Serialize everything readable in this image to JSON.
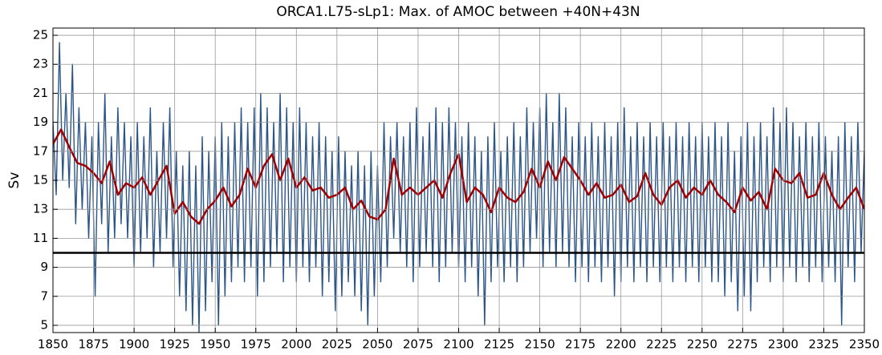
{
  "chart_data": {
    "type": "line",
    "title": "ORCA1.L75-sLp1: Max. of AMOC between +40N+43N",
    "ylabel": "Sv",
    "xlim": [
      1850,
      2350
    ],
    "ylim": [
      4.5,
      25.5
    ],
    "xticks": [
      1850,
      1875,
      1900,
      1925,
      1950,
      1975,
      2000,
      2025,
      2050,
      2075,
      2100,
      2125,
      2150,
      2175,
      2200,
      2225,
      2250,
      2275,
      2300,
      2325,
      2350
    ],
    "yticks": [
      5,
      7,
      9,
      11,
      13,
      15,
      17,
      19,
      21,
      23,
      25
    ],
    "grid": true,
    "hline": {
      "value": 10,
      "color": "#000000"
    },
    "series": [
      {
        "color": "#2b5487",
        "x": [
          1850,
          1852,
          1854,
          1856,
          1858,
          1860,
          1862,
          1864,
          1866,
          1868,
          1870,
          1872,
          1874,
          1876,
          1878,
          1880,
          1882,
          1884,
          1886,
          1888,
          1890,
          1892,
          1894,
          1896,
          1898,
          1900,
          1902,
          1904,
          1906,
          1908,
          1910,
          1912,
          1914,
          1916,
          1918,
          1920,
          1922,
          1924,
          1926,
          1928,
          1930,
          1932,
          1934,
          1936,
          1938,
          1940,
          1942,
          1944,
          1946,
          1948,
          1950,
          1952,
          1954,
          1956,
          1958,
          1960,
          1962,
          1964,
          1966,
          1968,
          1970,
          1972,
          1974,
          1976,
          1978,
          1980,
          1982,
          1984,
          1986,
          1988,
          1990,
          1992,
          1994,
          1996,
          1998,
          2000,
          2002,
          2004,
          2006,
          2008,
          2010,
          2012,
          2014,
          2016,
          2018,
          2020,
          2022,
          2024,
          2026,
          2028,
          2030,
          2032,
          2034,
          2036,
          2038,
          2040,
          2042,
          2044,
          2046,
          2048,
          2050,
          2052,
          2054,
          2056,
          2058,
          2060,
          2062,
          2064,
          2066,
          2068,
          2070,
          2072,
          2074,
          2076,
          2078,
          2080,
          2082,
          2084,
          2086,
          2088,
          2090,
          2092,
          2094,
          2096,
          2098,
          2100,
          2102,
          2104,
          2106,
          2108,
          2110,
          2112,
          2114,
          2116,
          2118,
          2120,
          2122,
          2124,
          2126,
          2128,
          2130,
          2132,
          2134,
          2136,
          2138,
          2140,
          2142,
          2144,
          2146,
          2148,
          2150,
          2152,
          2154,
          2156,
          2158,
          2160,
          2162,
          2164,
          2166,
          2168,
          2170,
          2172,
          2174,
          2176,
          2178,
          2180,
          2182,
          2184,
          2186,
          2188,
          2190,
          2192,
          2194,
          2196,
          2198,
          2200,
          2202,
          2204,
          2206,
          2208,
          2210,
          2212,
          2214,
          2216,
          2218,
          2220,
          2222,
          2224,
          2226,
          2228,
          2230,
          2232,
          2234,
          2236,
          2238,
          2240,
          2242,
          2244,
          2246,
          2248,
          2250,
          2252,
          2254,
          2256,
          2258,
          2260,
          2262,
          2264,
          2266,
          2268,
          2270,
          2272,
          2274,
          2276,
          2278,
          2280,
          2282,
          2284,
          2286,
          2288,
          2290,
          2292,
          2294,
          2296,
          2298,
          2300,
          2302,
          2304,
          2306,
          2308,
          2310,
          2312,
          2314,
          2316,
          2318,
          2320,
          2322,
          2324,
          2326,
          2328,
          2330,
          2332,
          2334,
          2336,
          2338,
          2340,
          2342,
          2344,
          2346,
          2348,
          2350
        ],
        "values": [
          19,
          14,
          24.5,
          15,
          21,
          14.5,
          23,
          12,
          20,
          13,
          19,
          11,
          18,
          7,
          19,
          12,
          21,
          10,
          18,
          11,
          20,
          12,
          19,
          11,
          18,
          9,
          19,
          10,
          18,
          11,
          20,
          9,
          17,
          10,
          19,
          11,
          20,
          9,
          17,
          7,
          16,
          6,
          17,
          5,
          16,
          4.5,
          18,
          6,
          17,
          8,
          18,
          5,
          19,
          7,
          18,
          8,
          19,
          9,
          20,
          8,
          19,
          9,
          20,
          7,
          21,
          8,
          20,
          9,
          19,
          10,
          21,
          8,
          20,
          9,
          19,
          8,
          20,
          9,
          19,
          8,
          18,
          9,
          19,
          7,
          18,
          8,
          17,
          6,
          18,
          7,
          17,
          8,
          16,
          7,
          17,
          6,
          16,
          5,
          17,
          7,
          16,
          8,
          19,
          9,
          18,
          11,
          19,
          10,
          18,
          9,
          19,
          8,
          20,
          9,
          18,
          10,
          19,
          9,
          20,
          8,
          19,
          9,
          20,
          10,
          19,
          9,
          18,
          8,
          19,
          9,
          18,
          7,
          17,
          5,
          18,
          8,
          19,
          9,
          17,
          8,
          18,
          9,
          19,
          8,
          18,
          9,
          20,
          10,
          19,
          11,
          20,
          9,
          21,
          10,
          19,
          9,
          21,
          10,
          20,
          9,
          18,
          8,
          19,
          9,
          18,
          8,
          19,
          9,
          18,
          8,
          19,
          9,
          18,
          7,
          19,
          8,
          20,
          9,
          18,
          8,
          19,
          9,
          18,
          8,
          19,
          9,
          18,
          8,
          19,
          9,
          18,
          8,
          19,
          9,
          18,
          8,
          19,
          9,
          18,
          8,
          19,
          9,
          18,
          8,
          19,
          8,
          18,
          7,
          19,
          8,
          17,
          6,
          18,
          7,
          19,
          6,
          18,
          8,
          19,
          9,
          18,
          8,
          20,
          9,
          19,
          8,
          20,
          9,
          19,
          8,
          18,
          9,
          19,
          8,
          18,
          9,
          19,
          8,
          18,
          9,
          17,
          8,
          18,
          5,
          19,
          9,
          18,
          8,
          19,
          10,
          17
        ]
      },
      {
        "color": "#a00000",
        "x": [
          1850,
          1855,
          1860,
          1865,
          1870,
          1875,
          1880,
          1885,
          1890,
          1895,
          1900,
          1905,
          1910,
          1915,
          1920,
          1925,
          1930,
          1935,
          1940,
          1945,
          1950,
          1955,
          1960,
          1965,
          1970,
          1975,
          1980,
          1985,
          1990,
          1995,
          2000,
          2005,
          2010,
          2015,
          2020,
          2025,
          2030,
          2035,
          2040,
          2045,
          2050,
          2055,
          2060,
          2065,
          2070,
          2075,
          2080,
          2085,
          2090,
          2095,
          2100,
          2105,
          2110,
          2115,
          2120,
          2125,
          2130,
          2135,
          2140,
          2145,
          2150,
          2155,
          2160,
          2165,
          2170,
          2175,
          2180,
          2185,
          2190,
          2195,
          2200,
          2205,
          2210,
          2215,
          2220,
          2225,
          2230,
          2235,
          2240,
          2245,
          2250,
          2255,
          2260,
          2265,
          2270,
          2275,
          2280,
          2285,
          2290,
          2295,
          2300,
          2305,
          2310,
          2315,
          2320,
          2325,
          2330,
          2335,
          2340,
          2345,
          2350
        ],
        "values": [
          17.5,
          18.5,
          17.3,
          16.2,
          16.0,
          15.5,
          14.8,
          16.3,
          14.0,
          14.8,
          14.5,
          15.2,
          14.0,
          15.0,
          16.0,
          12.7,
          13.5,
          12.5,
          12.0,
          13.0,
          13.6,
          14.5,
          13.2,
          14.0,
          15.8,
          14.5,
          16.0,
          16.8,
          15.0,
          16.5,
          14.5,
          15.2,
          14.3,
          14.5,
          13.8,
          14.0,
          14.5,
          13.0,
          13.6,
          12.5,
          12.3,
          13.0,
          16.5,
          14.0,
          14.5,
          14.0,
          14.5,
          15.0,
          13.8,
          15.5,
          16.8,
          13.5,
          14.5,
          14.0,
          12.8,
          14.5,
          13.8,
          13.5,
          14.2,
          15.8,
          14.5,
          16.3,
          15.0,
          16.6,
          15.8,
          15.0,
          14.0,
          14.8,
          13.8,
          14.0,
          14.7,
          13.5,
          13.9,
          15.5,
          14.0,
          13.3,
          14.5,
          15.0,
          13.8,
          14.5,
          14.0,
          15.0,
          14.0,
          13.5,
          12.8,
          14.5,
          13.6,
          14.2,
          13.0,
          15.8,
          15.0,
          14.8,
          15.5,
          13.8,
          14.0,
          15.5,
          14.0,
          13.0,
          13.8,
          14.5,
          13.0
        ]
      }
    ]
  }
}
